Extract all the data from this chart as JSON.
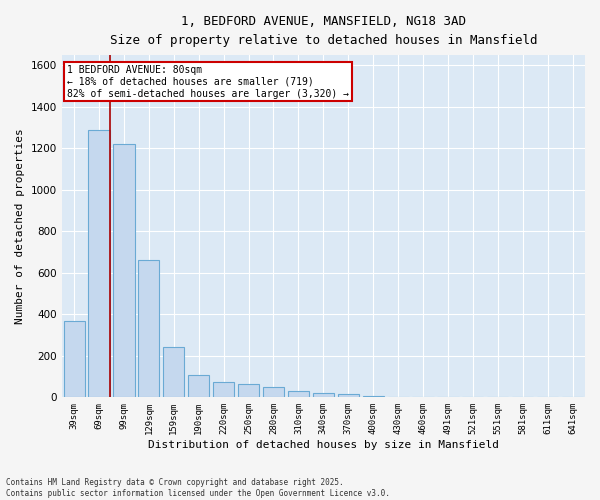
{
  "title_line1": "1, BEDFORD AVENUE, MANSFIELD, NG18 3AD",
  "title_line2": "Size of property relative to detached houses in Mansfield",
  "xlabel": "Distribution of detached houses by size in Mansfield",
  "ylabel": "Number of detached properties",
  "categories": [
    "39sqm",
    "69sqm",
    "99sqm",
    "129sqm",
    "159sqm",
    "190sqm",
    "220sqm",
    "250sqm",
    "280sqm",
    "310sqm",
    "340sqm",
    "370sqm",
    "400sqm",
    "430sqm",
    "460sqm",
    "491sqm",
    "521sqm",
    "551sqm",
    "581sqm",
    "611sqm",
    "641sqm"
  ],
  "values": [
    370,
    1290,
    1220,
    660,
    245,
    110,
    75,
    65,
    50,
    30,
    20,
    15,
    5,
    0,
    0,
    3,
    0,
    0,
    0,
    0,
    0
  ],
  "bar_color": "#c5d8ee",
  "bar_edge_color": "#6aaad4",
  "plot_bg_color": "#dce9f5",
  "fig_bg_color": "#f5f5f5",
  "grid_color": "#ffffff",
  "red_line_bin_index": 1,
  "annotation_text": "1 BEDFORD AVENUE: 80sqm\n← 18% of detached houses are smaller (719)\n82% of semi-detached houses are larger (3,320) →",
  "annotation_box_color": "#ffffff",
  "annotation_box_edge": "#cc0000",
  "ylim": [
    0,
    1650
  ],
  "yticks": [
    0,
    200,
    400,
    600,
    800,
    1000,
    1200,
    1400,
    1600
  ],
  "footer_line1": "Contains HM Land Registry data © Crown copyright and database right 2025.",
  "footer_line2": "Contains public sector information licensed under the Open Government Licence v3.0."
}
